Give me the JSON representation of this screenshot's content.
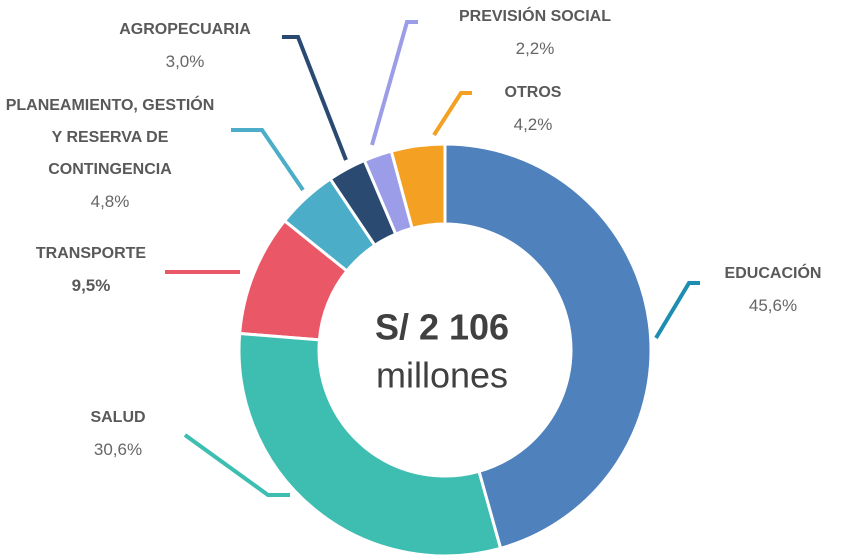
{
  "chart_data": {
    "type": "donut",
    "center_title": "S/ 2 106",
    "center_subtitle": "millones",
    "categories": [
      "EDUCACIÓN",
      "SALUD",
      "TRANSPORTE",
      "PLANEAMIENTO, GESTIÓN Y RESERVA DE CONTINGENCIA",
      "AGROPECUARIA",
      "PREVISIÓN SOCIAL",
      "OTROS"
    ],
    "values": [
      45.6,
      30.6,
      9.5,
      4.8,
      3.0,
      2.2,
      4.2
    ],
    "value_labels": [
      "45,6%",
      "30,6%",
      "9,5%",
      "4,8%",
      "3,0%",
      "2,2%",
      "4,2%"
    ],
    "colors": [
      "#4f81bd",
      "#3dbeb0",
      "#ea5868",
      "#4badc7",
      "#2b4a72",
      "#9c9de9",
      "#f3a023"
    ]
  }
}
